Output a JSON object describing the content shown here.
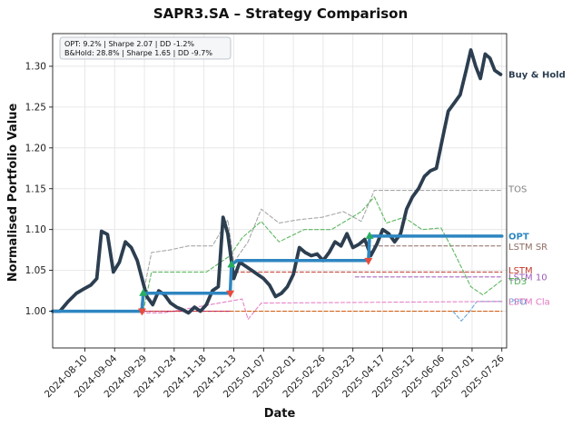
{
  "chart_data": {
    "type": "line",
    "title": "SAPR3.SA – Strategy Comparison",
    "xlabel": "Date",
    "ylabel": "Normalised Portfolio Value",
    "ylim": [
      0.955,
      1.34
    ],
    "xlim": [
      "2024-07-14",
      "2025-07-30"
    ],
    "grid": true,
    "x_ticks": [
      "2024-08-10",
      "2024-09-04",
      "2024-09-29",
      "2024-10-24",
      "2024-11-18",
      "2024-12-13",
      "2025-01-07",
      "2025-02-01",
      "2025-02-26",
      "2025-03-23",
      "2025-04-17",
      "2025-05-12",
      "2025-06-06",
      "2025-07-01",
      "2025-07-26"
    ],
    "y_ticks": [
      1.0,
      1.05,
      1.1,
      1.15,
      1.2,
      1.25,
      1.3
    ],
    "annotation": [
      "OPT: 9.2% | Sharpe 2.07 | DD -1.2%",
      "B&Hold: 28.8% | Sharpe 1.65 | DD -9.7%"
    ],
    "series": [
      {
        "name": "Buy & Hold",
        "color": "#2c3e50",
        "style": "solid-thick",
        "points": [
          [
            "2024-07-14",
            1.0
          ],
          [
            "2024-07-20",
            1.0
          ],
          [
            "2024-07-27",
            1.012
          ],
          [
            "2024-08-03",
            1.022
          ],
          [
            "2024-08-10",
            1.028
          ],
          [
            "2024-08-15",
            1.032
          ],
          [
            "2024-08-20",
            1.04
          ],
          [
            "2024-08-24",
            1.098
          ],
          [
            "2024-08-29",
            1.094
          ],
          [
            "2024-09-03",
            1.048
          ],
          [
            "2024-09-08",
            1.06
          ],
          [
            "2024-09-13",
            1.085
          ],
          [
            "2024-09-18",
            1.078
          ],
          [
            "2024-09-23",
            1.062
          ],
          [
            "2024-09-27",
            1.04
          ],
          [
            "2024-10-01",
            1.018
          ],
          [
            "2024-10-06",
            1.008
          ],
          [
            "2024-10-11",
            1.025
          ],
          [
            "2024-10-16",
            1.02
          ],
          [
            "2024-10-21",
            1.01
          ],
          [
            "2024-10-26",
            1.005
          ],
          [
            "2024-10-31",
            1.002
          ],
          [
            "2024-11-05",
            0.998
          ],
          [
            "2024-11-10",
            1.005
          ],
          [
            "2024-11-15",
            1.0
          ],
          [
            "2024-11-20",
            1.008
          ],
          [
            "2024-11-25",
            1.025
          ],
          [
            "2024-11-30",
            1.03
          ],
          [
            "2024-12-04",
            1.115
          ],
          [
            "2024-12-08",
            1.095
          ],
          [
            "2024-12-13",
            1.04
          ],
          [
            "2024-12-18",
            1.06
          ],
          [
            "2024-12-23",
            1.055
          ],
          [
            "2024-12-28",
            1.05
          ],
          [
            "2025-01-02",
            1.045
          ],
          [
            "2025-01-07",
            1.04
          ],
          [
            "2025-01-12",
            1.032
          ],
          [
            "2025-01-17",
            1.018
          ],
          [
            "2025-01-22",
            1.022
          ],
          [
            "2025-01-27",
            1.03
          ],
          [
            "2025-02-01",
            1.045
          ],
          [
            "2025-02-06",
            1.078
          ],
          [
            "2025-02-11",
            1.072
          ],
          [
            "2025-02-16",
            1.068
          ],
          [
            "2025-02-21",
            1.07
          ],
          [
            "2025-02-26",
            1.062
          ],
          [
            "2025-03-03",
            1.072
          ],
          [
            "2025-03-08",
            1.085
          ],
          [
            "2025-03-13",
            1.08
          ],
          [
            "2025-03-18",
            1.095
          ],
          [
            "2025-03-23",
            1.078
          ],
          [
            "2025-03-28",
            1.082
          ],
          [
            "2025-04-02",
            1.088
          ],
          [
            "2025-04-07",
            1.068
          ],
          [
            "2025-04-12",
            1.082
          ],
          [
            "2025-04-17",
            1.1
          ],
          [
            "2025-04-22",
            1.095
          ],
          [
            "2025-04-27",
            1.085
          ],
          [
            "2025-05-02",
            1.095
          ],
          [
            "2025-05-07",
            1.125
          ],
          [
            "2025-05-12",
            1.14
          ],
          [
            "2025-05-17",
            1.15
          ],
          [
            "2025-05-22",
            1.165
          ],
          [
            "2025-05-27",
            1.172
          ],
          [
            "2025-06-01",
            1.175
          ],
          [
            "2025-06-06",
            1.21
          ],
          [
            "2025-06-11",
            1.245
          ],
          [
            "2025-06-16",
            1.255
          ],
          [
            "2025-06-21",
            1.265
          ],
          [
            "2025-06-26",
            1.295
          ],
          [
            "2025-06-30",
            1.32
          ],
          [
            "2025-07-04",
            1.3
          ],
          [
            "2025-07-08",
            1.285
          ],
          [
            "2025-07-12",
            1.315
          ],
          [
            "2025-07-16",
            1.31
          ],
          [
            "2025-07-20",
            1.295
          ],
          [
            "2025-07-25",
            1.29
          ]
        ]
      },
      {
        "name": "OPT",
        "color": "#2e86c1",
        "style": "solid-thick",
        "points": [
          [
            "2024-07-14",
            1.0
          ],
          [
            "2024-09-27",
            1.0
          ],
          [
            "2024-09-28",
            1.022
          ],
          [
            "2024-12-10",
            1.022
          ],
          [
            "2024-12-11",
            1.057
          ],
          [
            "2024-12-16",
            1.062
          ],
          [
            "2025-04-05",
            1.062
          ],
          [
            "2025-04-06",
            1.092
          ],
          [
            "2025-07-26",
            1.092
          ]
        ]
      },
      {
        "name": "TOS",
        "color": "#9e9e9e",
        "style": "dashed",
        "points": [
          [
            "2024-09-25",
            1.0
          ],
          [
            "2024-10-05",
            1.072
          ],
          [
            "2024-10-20",
            1.075
          ],
          [
            "2024-11-05",
            1.08
          ],
          [
            "2024-11-25",
            1.08
          ],
          [
            "2024-12-08",
            1.112
          ],
          [
            "2024-12-13",
            1.06
          ],
          [
            "2024-12-25",
            1.085
          ],
          [
            "2025-01-05",
            1.125
          ],
          [
            "2025-01-20",
            1.108
          ],
          [
            "2025-02-05",
            1.112
          ],
          [
            "2025-02-25",
            1.115
          ],
          [
            "2025-03-15",
            1.122
          ],
          [
            "2025-03-30",
            1.11
          ],
          [
            "2025-04-10",
            1.148
          ],
          [
            "2025-05-20",
            1.148
          ],
          [
            "2025-07-26",
            1.148
          ]
        ]
      },
      {
        "name": "LSTM SR",
        "color": "#8d6e63",
        "style": "dashed",
        "points": [
          [
            "2025-03-30",
            1.08
          ],
          [
            "2025-07-26",
            1.08
          ]
        ]
      },
      {
        "name": "LSTM",
        "color": "#c0392b",
        "style": "dashed",
        "points": [
          [
            "2024-12-14",
            1.048
          ],
          [
            "2025-07-26",
            1.048
          ]
        ]
      },
      {
        "name": "LSTM 10",
        "color": "#9b59b6",
        "style": "dashed",
        "points": [
          [
            "2025-03-25",
            1.042
          ],
          [
            "2025-07-26",
            1.042
          ]
        ]
      },
      {
        "name": "TD3",
        "color": "#4caf50",
        "style": "dashed",
        "points": [
          [
            "2024-09-28",
            1.0
          ],
          [
            "2024-10-05",
            1.048
          ],
          [
            "2024-11-20",
            1.048
          ],
          [
            "2024-12-10",
            1.068
          ],
          [
            "2024-12-20",
            1.09
          ],
          [
            "2025-01-05",
            1.11
          ],
          [
            "2025-01-20",
            1.085
          ],
          [
            "2025-02-10",
            1.1
          ],
          [
            "2025-03-05",
            1.1
          ],
          [
            "2025-03-30",
            1.122
          ],
          [
            "2025-04-10",
            1.14
          ],
          [
            "2025-04-20",
            1.108
          ],
          [
            "2025-05-05",
            1.115
          ],
          [
            "2025-05-20",
            1.1
          ],
          [
            "2025-06-05",
            1.102
          ],
          [
            "2025-06-15",
            1.075
          ],
          [
            "2025-06-30",
            1.03
          ],
          [
            "2025-07-10",
            1.02
          ],
          [
            "2025-07-26",
            1.038
          ]
        ]
      },
      {
        "name": "PPO",
        "color": "#5b9bd5",
        "style": "dashed",
        "points": [
          [
            "2025-06-15",
            1.0
          ],
          [
            "2025-06-22",
            0.988
          ],
          [
            "2025-06-28",
            0.998
          ],
          [
            "2025-07-05",
            1.012
          ],
          [
            "2025-07-26",
            1.012
          ]
        ]
      },
      {
        "name": "LSTM Cla",
        "color": "#e377c2",
        "style": "dashed",
        "points": [
          [
            "2024-09-26",
            0.998
          ],
          [
            "2024-10-15",
            0.998
          ],
          [
            "2024-12-20",
            1.015
          ],
          [
            "2024-12-25",
            0.99
          ],
          [
            "2025-01-05",
            1.01
          ],
          [
            "2025-07-26",
            1.012
          ]
        ]
      },
      {
        "name": "",
        "color": "#d35400",
        "style": "dashed",
        "points": [
          [
            "2024-07-14",
            1.0
          ],
          [
            "2025-07-26",
            1.0
          ]
        ]
      },
      {
        "name": "",
        "color": "#c2185b",
        "style": "dashed",
        "points": [
          [
            "2024-09-28",
            1.0
          ],
          [
            "2024-12-10",
            1.0
          ]
        ]
      }
    ],
    "buy_markers": [
      [
        "2024-09-28",
        1.022
      ],
      [
        "2024-12-11",
        1.057
      ],
      [
        "2025-04-06",
        1.092
      ]
    ],
    "sell_markers": [
      [
        "2024-09-27",
        1.0
      ],
      [
        "2024-12-10",
        1.022
      ],
      [
        "2025-04-05",
        1.062
      ]
    ],
    "marker_colors": {
      "buy": "#27ae60",
      "sell": "#e74c3c"
    },
    "series_labels": [
      {
        "text": "Buy & Hold",
        "value": 1.29,
        "color": "#2c3e50",
        "bold": true
      },
      {
        "text": "TOS",
        "value": 1.15,
        "color": "#808080",
        "bold": false
      },
      {
        "text": "OPT",
        "value": 1.092,
        "color": "#2e86c1",
        "bold": true
      },
      {
        "text": "LSTM SR",
        "value": 1.079,
        "color": "#8d6e63",
        "bold": false
      },
      {
        "text": "LSTM",
        "value": 1.05,
        "color": "#c0392b",
        "bold": false
      },
      {
        "text": "LSTM 10",
        "value": 1.042,
        "color": "#9b59b6",
        "bold": false
      },
      {
        "text": "TD3",
        "value": 1.037,
        "color": "#4caf50",
        "bold": false
      },
      {
        "text": "PPO",
        "value": 1.012,
        "color": "#5b9bd5",
        "bold": false
      },
      {
        "text": "LSTM Cla",
        "value": 1.012,
        "color": "#e377c2",
        "bold": false
      }
    ]
  }
}
